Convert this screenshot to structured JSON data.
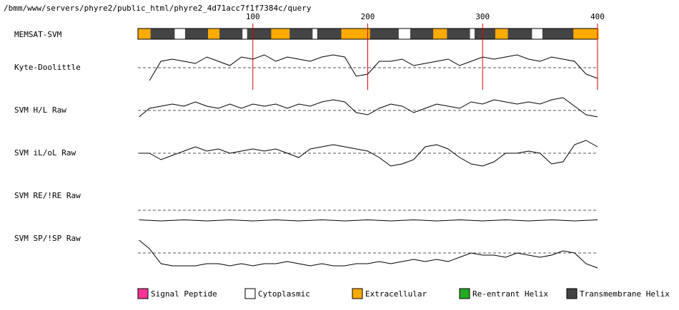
{
  "header": {
    "path": "/bmm/www/servers/phyre2/public_html/phyre2_4d71acc7f1f7384c/query"
  },
  "chart_data": {
    "type": "line",
    "sequence_length": 400,
    "x_ticks": [
      100,
      200,
      300,
      400
    ],
    "memsat_track": {
      "label": "MEMSAT-SVM",
      "segments": [
        {
          "start": 1,
          "end": 12,
          "state": "Extracellular"
        },
        {
          "start": 12,
          "end": 33,
          "state": "Transmembrane Helix"
        },
        {
          "start": 33,
          "end": 42,
          "state": "Cytoplasmic"
        },
        {
          "start": 42,
          "end": 62,
          "state": "Transmembrane Helix"
        },
        {
          "start": 62,
          "end": 72,
          "state": "Extracellular"
        },
        {
          "start": 72,
          "end": 92,
          "state": "Transmembrane Helix"
        },
        {
          "start": 92,
          "end": 96,
          "state": "Cytoplasmic"
        },
        {
          "start": 96,
          "end": 117,
          "state": "Transmembrane Helix"
        },
        {
          "start": 117,
          "end": 133,
          "state": "Extracellular"
        },
        {
          "start": 133,
          "end": 153,
          "state": "Transmembrane Helix"
        },
        {
          "start": 153,
          "end": 157,
          "state": "Cytoplasmic"
        },
        {
          "start": 157,
          "end": 178,
          "state": "Transmembrane Helix"
        },
        {
          "start": 178,
          "end": 203,
          "state": "Extracellular"
        },
        {
          "start": 203,
          "end": 228,
          "state": "Transmembrane Helix"
        },
        {
          "start": 228,
          "end": 238,
          "state": "Cytoplasmic"
        },
        {
          "start": 238,
          "end": 258,
          "state": "Transmembrane Helix"
        },
        {
          "start": 258,
          "end": 270,
          "state": "Extracellular"
        },
        {
          "start": 270,
          "end": 290,
          "state": "Transmembrane Helix"
        },
        {
          "start": 290,
          "end": 294,
          "state": "Cytoplasmic"
        },
        {
          "start": 294,
          "end": 312,
          "state": "Transmembrane Helix"
        },
        {
          "start": 312,
          "end": 323,
          "state": "Extracellular"
        },
        {
          "start": 323,
          "end": 344,
          "state": "Transmembrane Helix"
        },
        {
          "start": 344,
          "end": 353,
          "state": "Cytoplasmic"
        },
        {
          "start": 353,
          "end": 380,
          "state": "Transmembrane Helix"
        },
        {
          "start": 380,
          "end": 401,
          "state": "Extracellular"
        }
      ]
    },
    "series": [
      {
        "name": "Kyte-Doolittle",
        "x": [
          10,
          20,
          30,
          40,
          50,
          60,
          70,
          80,
          90,
          100,
          110,
          120,
          130,
          140,
          150,
          160,
          170,
          180,
          190,
          200,
          210,
          220,
          230,
          240,
          250,
          260,
          270,
          280,
          290,
          300,
          310,
          320,
          330,
          340,
          350,
          360,
          370,
          380,
          390,
          400
        ],
        "values": [
          -0.6,
          0.3,
          0.4,
          0.3,
          0.2,
          0.5,
          0.3,
          0.1,
          0.5,
          0.4,
          0.6,
          0.3,
          0.5,
          0.4,
          0.3,
          0.5,
          0.6,
          0.5,
          -0.4,
          -0.3,
          0.3,
          0.3,
          0.4,
          0.1,
          0.2,
          0.3,
          0.4,
          0.1,
          0.3,
          0.5,
          0.4,
          0.5,
          0.6,
          0.4,
          0.3,
          0.5,
          0.4,
          0.3,
          -0.3,
          -0.5
        ]
      },
      {
        "name": "SVM H/L Raw",
        "x": [
          1,
          10,
          20,
          30,
          40,
          50,
          60,
          70,
          80,
          90,
          100,
          110,
          120,
          130,
          140,
          150,
          160,
          170,
          180,
          190,
          200,
          210,
          220,
          230,
          240,
          250,
          260,
          270,
          280,
          290,
          300,
          310,
          320,
          330,
          340,
          350,
          360,
          370,
          380,
          390,
          400
        ],
        "values": [
          -0.3,
          0.1,
          0.2,
          0.3,
          0.2,
          0.4,
          0.2,
          0.1,
          0.3,
          0.1,
          0.3,
          0.2,
          0.3,
          0.1,
          0.3,
          0.2,
          0.4,
          0.5,
          0.4,
          -0.1,
          -0.2,
          0.1,
          0.3,
          0.2,
          -0.1,
          0.1,
          0.3,
          0.2,
          0.1,
          0.4,
          0.3,
          0.5,
          0.4,
          0.3,
          0.4,
          0.3,
          0.5,
          0.6,
          0.2,
          -0.2,
          -0.3
        ]
      },
      {
        "name": "SVM iL/oL Raw",
        "x": [
          1,
          10,
          20,
          30,
          40,
          50,
          60,
          70,
          80,
          90,
          100,
          110,
          120,
          130,
          140,
          150,
          160,
          170,
          180,
          190,
          200,
          210,
          220,
          230,
          240,
          250,
          260,
          270,
          280,
          290,
          300,
          310,
          320,
          330,
          340,
          350,
          360,
          370,
          380,
          390,
          400
        ],
        "values": [
          0.0,
          0.0,
          -0.3,
          -0.1,
          0.1,
          0.3,
          0.1,
          0.2,
          0.0,
          0.1,
          0.2,
          0.1,
          0.2,
          0.0,
          -0.2,
          0.2,
          0.3,
          0.4,
          0.3,
          0.2,
          0.1,
          -0.2,
          -0.6,
          -0.5,
          -0.3,
          0.3,
          0.4,
          0.2,
          -0.2,
          -0.5,
          -0.6,
          -0.4,
          0.0,
          0.0,
          0.1,
          0.0,
          -0.5,
          -0.4,
          0.4,
          0.6,
          0.3
        ]
      },
      {
        "name": "SVM RE/!RE Raw",
        "x": [
          1,
          20,
          40,
          60,
          80,
          100,
          120,
          140,
          160,
          180,
          200,
          220,
          240,
          260,
          280,
          300,
          320,
          340,
          360,
          380,
          400
        ],
        "values": [
          -0.45,
          -0.5,
          -0.45,
          -0.5,
          -0.45,
          -0.5,
          -0.45,
          -0.5,
          -0.45,
          -0.5,
          -0.45,
          -0.5,
          -0.45,
          -0.5,
          -0.45,
          -0.5,
          -0.45,
          -0.5,
          -0.45,
          -0.5,
          -0.45
        ]
      },
      {
        "name": "SVM SP/!SP Raw",
        "x": [
          1,
          10,
          20,
          30,
          40,
          50,
          60,
          70,
          80,
          90,
          100,
          110,
          120,
          130,
          140,
          150,
          160,
          170,
          180,
          190,
          200,
          210,
          220,
          230,
          240,
          250,
          260,
          270,
          280,
          290,
          300,
          310,
          320,
          330,
          340,
          350,
          360,
          370,
          380,
          390,
          400
        ],
        "values": [
          0.6,
          0.2,
          -0.5,
          -0.6,
          -0.6,
          -0.6,
          -0.5,
          -0.5,
          -0.6,
          -0.5,
          -0.6,
          -0.5,
          -0.5,
          -0.4,
          -0.5,
          -0.6,
          -0.5,
          -0.6,
          -0.6,
          -0.5,
          -0.5,
          -0.4,
          -0.5,
          -0.4,
          -0.3,
          -0.4,
          -0.3,
          -0.4,
          -0.2,
          0.0,
          -0.1,
          -0.1,
          -0.2,
          0.0,
          -0.1,
          -0.2,
          -0.1,
          0.1,
          0.0,
          -0.5,
          -0.7
        ]
      }
    ]
  },
  "legend": {
    "items": [
      {
        "label": "Signal Peptide",
        "color": "#ff3399"
      },
      {
        "label": "Cytoplasmic",
        "color": "#ffffff"
      },
      {
        "label": "Extracellular",
        "color": "#ffaa00"
      },
      {
        "label": "Re-entrant Helix",
        "color": "#22aa22"
      },
      {
        "label": "Transmembrane Helix",
        "color": "#444444"
      }
    ]
  },
  "colors": {
    "marker": "#dd0000",
    "track_border": "#000000",
    "baseline": "#555555"
  }
}
